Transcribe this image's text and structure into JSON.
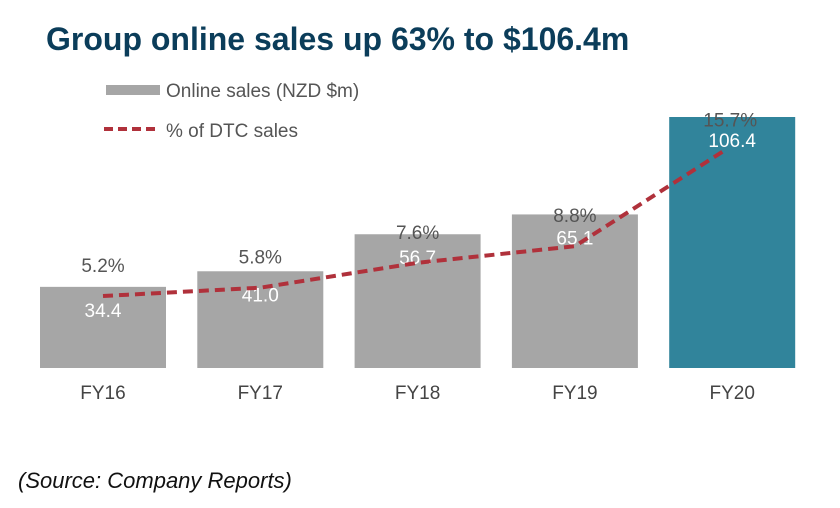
{
  "chart_data": {
    "type": "bar",
    "title": "Group online sales up 63% to $106.4m",
    "categories": [
      "FY16",
      "FY17",
      "FY18",
      "FY19",
      "FY20"
    ],
    "series": [
      {
        "name": "Online sales (NZD $m)",
        "kind": "bar",
        "values": [
          34.4,
          41.0,
          56.7,
          65.1,
          106.4
        ],
        "labels": [
          "34.4",
          "41.0",
          "56.7",
          "65.1",
          "106.4"
        ],
        "color": "#a6a6a6",
        "highlight_color": "#31849b"
      },
      {
        "name": "% of DTC sales",
        "kind": "line",
        "style": "dashed",
        "values": [
          5.2,
          5.8,
          7.6,
          8.8,
          15.7
        ],
        "labels": [
          "5.2%",
          "5.8%",
          "7.6%",
          "8.8%",
          "15.7%"
        ],
        "color": "#b0313b"
      }
    ],
    "xlabel": "",
    "ylabel": "",
    "ylim": [
      0,
      106.4
    ],
    "y2lim": [
      0,
      20.3
    ],
    "grid": false,
    "legend": "top-left"
  },
  "source": "(Source: Company Reports)"
}
